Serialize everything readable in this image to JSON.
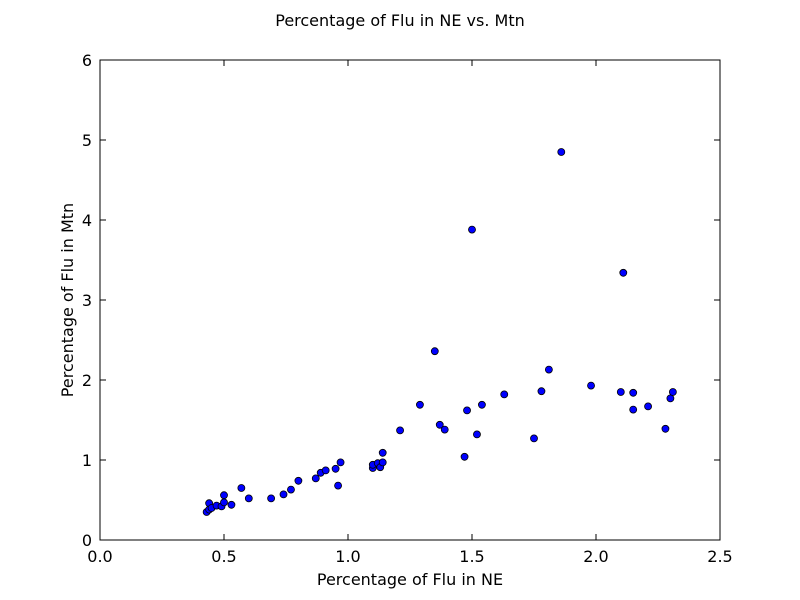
{
  "chart_data": {
    "type": "scatter",
    "title": "Percentage of Flu in NE vs. Mtn",
    "xlabel": "Percentage of Flu in NE",
    "ylabel": "Percentage of Flu in Mtn",
    "xlim": [
      0.0,
      2.5
    ],
    "ylim": [
      0,
      6
    ],
    "xticks": [
      0.0,
      0.5,
      1.0,
      1.5,
      2.0,
      2.5
    ],
    "xtick_labels": [
      "0.0",
      "0.5",
      "1.0",
      "1.5",
      "2.0",
      "2.5"
    ],
    "yticks": [
      0,
      1,
      2,
      3,
      4,
      5,
      6
    ],
    "ytick_labels": [
      "0",
      "1",
      "2",
      "3",
      "4",
      "5",
      "6"
    ],
    "grid": false,
    "marker_color": "#0000ff",
    "marker_edge_color": "#000000",
    "series": [
      {
        "x": [
          0.43,
          0.44,
          0.44,
          0.45,
          0.47,
          0.49,
          0.5,
          0.5,
          0.53,
          0.57,
          0.6,
          0.69,
          0.74,
          0.77,
          0.8,
          0.87,
          0.89,
          0.91,
          0.95,
          0.96,
          0.97,
          1.1,
          1.1,
          1.12,
          1.13,
          1.14,
          1.14,
          1.21,
          1.29,
          1.35,
          1.37,
          1.39,
          1.47,
          1.48,
          1.5,
          1.52,
          1.54,
          1.63,
          1.75,
          1.78,
          1.81,
          1.86,
          1.98,
          2.1,
          2.11,
          2.15,
          2.15,
          2.21,
          2.28,
          2.3,
          2.31
        ],
        "y": [
          0.35,
          0.38,
          0.46,
          0.4,
          0.43,
          0.42,
          0.47,
          0.56,
          0.44,
          0.65,
          0.52,
          0.52,
          0.57,
          0.63,
          0.74,
          0.77,
          0.84,
          0.87,
          0.89,
          0.68,
          0.97,
          0.9,
          0.94,
          0.96,
          0.91,
          0.97,
          1.09,
          1.37,
          1.69,
          2.36,
          1.44,
          1.38,
          1.04,
          1.62,
          3.88,
          1.32,
          1.69,
          1.82,
          1.27,
          1.86,
          2.13,
          4.85,
          1.93,
          1.85,
          3.34,
          1.84,
          1.63,
          1.67,
          1.39,
          1.77,
          1.85
        ]
      }
    ]
  }
}
